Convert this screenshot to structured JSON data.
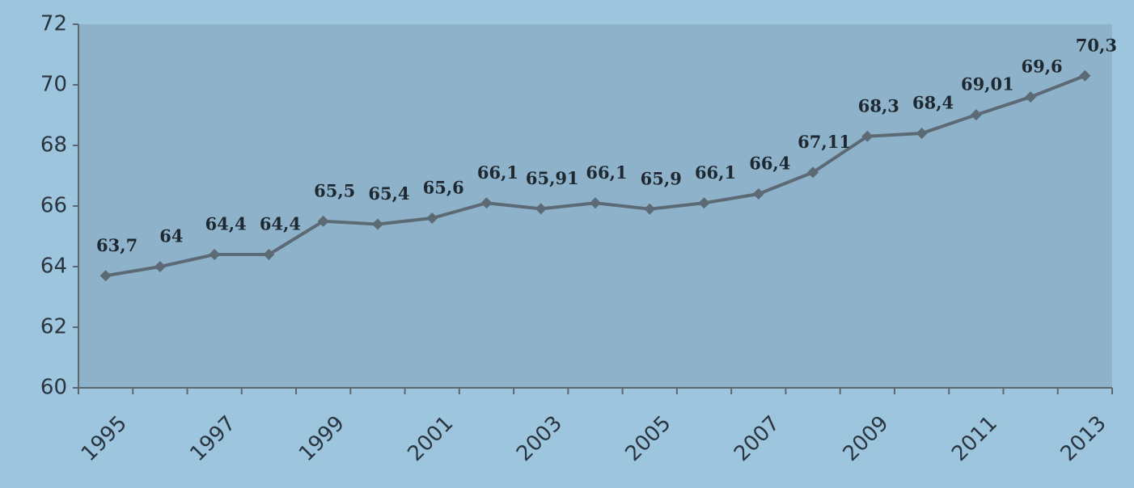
{
  "chart_data": {
    "type": "line",
    "categories": [
      "1995",
      null,
      "1997",
      null,
      "1999",
      null,
      "2001",
      null,
      "2003",
      null,
      "2005",
      null,
      "2007",
      null,
      "2009",
      null,
      "2011",
      null,
      "2013"
    ],
    "series": [
      {
        "color": "#5c6a75",
        "values": [
          63.7,
          64,
          64.4,
          64.4,
          65.5,
          65.4,
          65.6,
          66.1,
          65.91,
          66.1,
          65.9,
          66.1,
          66.4,
          67.11,
          68.3,
          68.4,
          69.01,
          69.6,
          70.3
        ],
        "value_labels": [
          "63,7",
          "64",
          "64,4",
          "64,4",
          "65,5",
          "65,4",
          "65,6",
          "66,1",
          "65,91",
          "66,1",
          "65,9",
          "66,1",
          "66,4",
          "67,11",
          "68,3",
          "68,4",
          "69,01",
          "69,6",
          "70,3"
        ]
      }
    ],
    "ylim": [
      60,
      72
    ],
    "yticks": [
      60,
      62,
      64,
      66,
      68,
      70,
      72
    ]
  }
}
